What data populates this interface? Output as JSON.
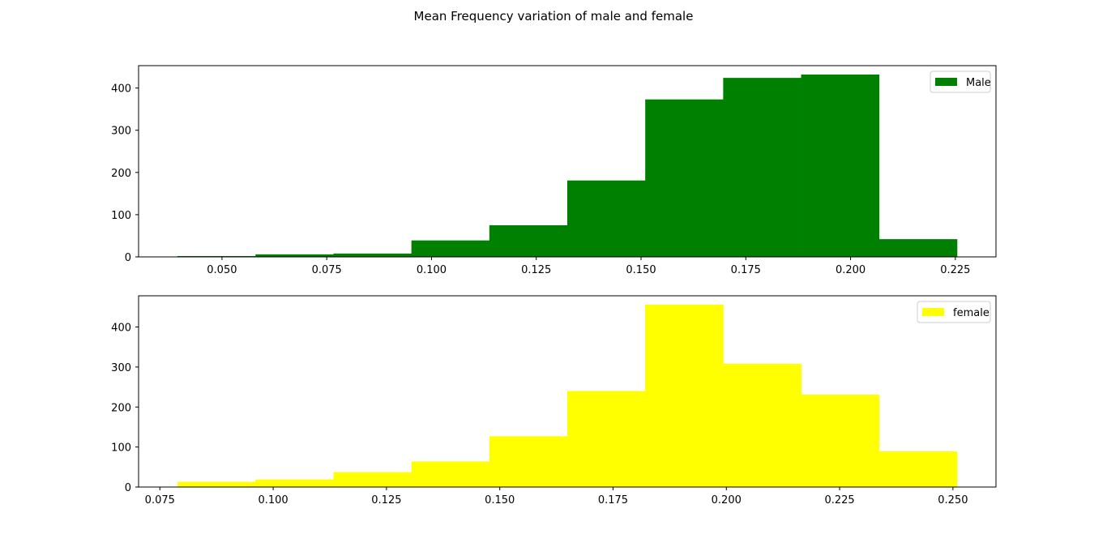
{
  "figure_title": "Mean Frequency variation of male and female",
  "chart_data": [
    {
      "type": "bar",
      "subtype": "histogram",
      "series_name": "Male",
      "color": "#008000",
      "bin_edges": [
        0.0394,
        0.058,
        0.0766,
        0.0952,
        0.1138,
        0.1324,
        0.151,
        0.1696,
        0.1882,
        0.2068,
        0.2254
      ],
      "values": [
        2,
        6,
        8,
        39,
        75,
        181,
        373,
        424,
        432,
        42
      ],
      "xlim": [
        0.0301,
        0.2347
      ],
      "ylim": [
        0,
        453
      ],
      "xticks": [
        0.05,
        0.075,
        0.1,
        0.125,
        0.15,
        0.175,
        0.2,
        0.225
      ],
      "xtick_labels": [
        "0.050",
        "0.075",
        "0.100",
        "0.125",
        "0.150",
        "0.175",
        "0.200",
        "0.225"
      ],
      "yticks": [
        0,
        100,
        200,
        300,
        400
      ],
      "ytick_labels": [
        "0",
        "100",
        "200",
        "300",
        "400"
      ],
      "legend": {
        "label": "Male",
        "position": "top-right"
      }
    },
    {
      "type": "bar",
      "subtype": "histogram",
      "series_name": "female",
      "color": "#ffff00",
      "bin_edges": [
        0.0789,
        0.0961,
        0.1133,
        0.1305,
        0.1477,
        0.1649,
        0.1821,
        0.1993,
        0.2165,
        0.2337,
        0.2509
      ],
      "values": [
        13,
        19,
        37,
        64,
        127,
        240,
        456,
        308,
        231,
        89
      ],
      "xlim": [
        0.0703,
        0.2595
      ],
      "ylim": [
        0,
        478
      ],
      "xticks": [
        0.075,
        0.1,
        0.125,
        0.15,
        0.175,
        0.2,
        0.225,
        0.25
      ],
      "xtick_labels": [
        "0.075",
        "0.100",
        "0.125",
        "0.150",
        "0.175",
        "0.200",
        "0.225",
        "0.250"
      ],
      "yticks": [
        0,
        100,
        200,
        300,
        400
      ],
      "ytick_labels": [
        "0",
        "100",
        "200",
        "300",
        "400"
      ],
      "legend": {
        "label": "female",
        "position": "top-right"
      }
    }
  ]
}
